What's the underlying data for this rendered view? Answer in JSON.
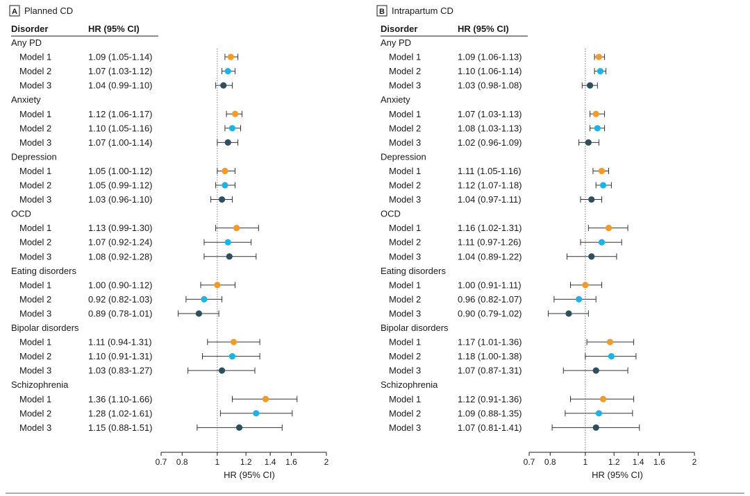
{
  "colors": {
    "model_1": "#f39a2d",
    "model_2": "#1fb3e5",
    "model_3": "#2e4f5d",
    "text": "#1a1a1a",
    "line": "#333333",
    "reference": "#777777"
  },
  "chart_data": [
    {
      "type": "forest",
      "panel_letter": "A",
      "title": "Planned CD",
      "col_disorder": "Disorder",
      "col_hr": "HR (95% CI)",
      "xlabel": "HR (95% CI)",
      "xscale": "log",
      "xlim": [
        0.7,
        2
      ],
      "xticks": [
        0.7,
        0.8,
        1,
        1.2,
        1.4,
        1.6,
        2
      ],
      "xtick_labels": [
        "0.7",
        "0.8",
        "1",
        "1.2",
        "1.4",
        "1.6",
        "2"
      ],
      "reference_line": 1,
      "groups": [
        {
          "name": "Any PD",
          "rows": [
            {
              "model": "Model 1",
              "label": "1.09 (1.05-1.14)",
              "hr": 1.09,
              "lo": 1.05,
              "hi": 1.14
            },
            {
              "model": "Model 2",
              "label": "1.07 (1.03-1.12)",
              "hr": 1.07,
              "lo": 1.03,
              "hi": 1.12
            },
            {
              "model": "Model 3",
              "label": "1.04 (0.99-1.10)",
              "hr": 1.04,
              "lo": 0.99,
              "hi": 1.1
            }
          ]
        },
        {
          "name": "Anxiety",
          "rows": [
            {
              "model": "Model 1",
              "label": "1.12 (1.06-1.17)",
              "hr": 1.12,
              "lo": 1.06,
              "hi": 1.17
            },
            {
              "model": "Model 2",
              "label": "1.10 (1.05-1.16)",
              "hr": 1.1,
              "lo": 1.05,
              "hi": 1.16
            },
            {
              "model": "Model 3",
              "label": "1.07 (1.00-1.14)",
              "hr": 1.07,
              "lo": 1.0,
              "hi": 1.14
            }
          ]
        },
        {
          "name": "Depression",
          "rows": [
            {
              "model": "Model 1",
              "label": "1.05 (1.00-1.12)",
              "hr": 1.05,
              "lo": 1.0,
              "hi": 1.12
            },
            {
              "model": "Model 2",
              "label": "1.05 (0.99-1.12)",
              "hr": 1.05,
              "lo": 0.99,
              "hi": 1.12
            },
            {
              "model": "Model 3",
              "label": "1.03 (0.96-1.10)",
              "hr": 1.03,
              "lo": 0.96,
              "hi": 1.1
            }
          ]
        },
        {
          "name": "OCD",
          "rows": [
            {
              "model": "Model 1",
              "label": "1.13 (0.99-1.30)",
              "hr": 1.13,
              "lo": 0.99,
              "hi": 1.3
            },
            {
              "model": "Model 2",
              "label": "1.07 (0.92-1.24)",
              "hr": 1.07,
              "lo": 0.92,
              "hi": 1.24
            },
            {
              "model": "Model 3",
              "label": "1.08 (0.92-1.28)",
              "hr": 1.08,
              "lo": 0.92,
              "hi": 1.28
            }
          ]
        },
        {
          "name": "Eating disorders",
          "rows": [
            {
              "model": "Model 1",
              "label": "1.00 (0.90-1.12)",
              "hr": 1.0,
              "lo": 0.9,
              "hi": 1.12
            },
            {
              "model": "Model 2",
              "label": "0.92 (0.82-1.03)",
              "hr": 0.92,
              "lo": 0.82,
              "hi": 1.03
            },
            {
              "model": "Model 3",
              "label": "0.89 (0.78-1.01)",
              "hr": 0.89,
              "lo": 0.78,
              "hi": 1.01
            }
          ]
        },
        {
          "name": "Bipolar disorders",
          "rows": [
            {
              "model": "Model 1",
              "label": "1.11 (0.94-1.31)",
              "hr": 1.11,
              "lo": 0.94,
              "hi": 1.31
            },
            {
              "model": "Model 2",
              "label": "1.10 (0.91-1.31)",
              "hr": 1.1,
              "lo": 0.91,
              "hi": 1.31
            },
            {
              "model": "Model 3",
              "label": "1.03 (0.83-1.27)",
              "hr": 1.03,
              "lo": 0.83,
              "hi": 1.27
            }
          ]
        },
        {
          "name": "Schizophrenia",
          "rows": [
            {
              "model": "Model 1",
              "label": "1.36 (1.10-1.66)",
              "hr": 1.36,
              "lo": 1.1,
              "hi": 1.66
            },
            {
              "model": "Model 2",
              "label": "1.28 (1.02-1.61)",
              "hr": 1.28,
              "lo": 1.02,
              "hi": 1.61
            },
            {
              "model": "Model 3",
              "label": "1.15 (0.88-1.51)",
              "hr": 1.15,
              "lo": 0.88,
              "hi": 1.51
            }
          ]
        }
      ]
    },
    {
      "type": "forest",
      "panel_letter": "B",
      "title": "Intrapartum CD",
      "col_disorder": "Disorder",
      "col_hr": "HR (95% CI)",
      "xlabel": "HR (95% CI)",
      "xscale": "log",
      "xlim": [
        0.7,
        2
      ],
      "xticks": [
        0.7,
        0.8,
        1,
        1.2,
        1.4,
        1.6,
        2
      ],
      "xtick_labels": [
        "0.7",
        "0.8",
        "1",
        "1.2",
        "1.4",
        "1.6",
        "2"
      ],
      "reference_line": 1,
      "groups": [
        {
          "name": "Any PD",
          "rows": [
            {
              "model": "Model 1",
              "label": "1.09 (1.06-1.13)",
              "hr": 1.09,
              "lo": 1.06,
              "hi": 1.13
            },
            {
              "model": "Model 2",
              "label": "1.10 (1.06-1.14)",
              "hr": 1.1,
              "lo": 1.06,
              "hi": 1.14
            },
            {
              "model": "Model 3",
              "label": "1.03 (0.98-1.08)",
              "hr": 1.03,
              "lo": 0.98,
              "hi": 1.08
            }
          ]
        },
        {
          "name": "Anxiety",
          "rows": [
            {
              "model": "Model 1",
              "label": "1.07 (1.03-1.13)",
              "hr": 1.07,
              "lo": 1.03,
              "hi": 1.13
            },
            {
              "model": "Model 2",
              "label": "1.08 (1.03-1.13)",
              "hr": 1.08,
              "lo": 1.03,
              "hi": 1.13
            },
            {
              "model": "Model 3",
              "label": "1.02 (0.96-1.09)",
              "hr": 1.02,
              "lo": 0.96,
              "hi": 1.09
            }
          ]
        },
        {
          "name": "Depression",
          "rows": [
            {
              "model": "Model 1",
              "label": "1.11 (1.05-1.16)",
              "hr": 1.11,
              "lo": 1.05,
              "hi": 1.16
            },
            {
              "model": "Model 2",
              "label": "1.12 (1.07-1.18)",
              "hr": 1.12,
              "lo": 1.07,
              "hi": 1.18
            },
            {
              "model": "Model 3",
              "label": "1.04 (0.97-1.11)",
              "hr": 1.04,
              "lo": 0.97,
              "hi": 1.11
            }
          ]
        },
        {
          "name": "OCD",
          "rows": [
            {
              "model": "Model 1",
              "label": "1.16 (1.02-1.31)",
              "hr": 1.16,
              "lo": 1.02,
              "hi": 1.31
            },
            {
              "model": "Model 2",
              "label": "1.11 (0.97-1.26)",
              "hr": 1.11,
              "lo": 0.97,
              "hi": 1.26
            },
            {
              "model": "Model 3",
              "label": "1.04 (0.89-1.22)",
              "hr": 1.04,
              "lo": 0.89,
              "hi": 1.22
            }
          ]
        },
        {
          "name": "Eating disorders",
          "rows": [
            {
              "model": "Model 1",
              "label": "1.00 (0.91-1.11)",
              "hr": 1.0,
              "lo": 0.91,
              "hi": 1.11
            },
            {
              "model": "Model 2",
              "label": "0.96 (0.82-1.07)",
              "hr": 0.96,
              "lo": 0.82,
              "hi": 1.07
            },
            {
              "model": "Model 3",
              "label": "0.90 (0.79-1.02)",
              "hr": 0.9,
              "lo": 0.79,
              "hi": 1.02
            }
          ]
        },
        {
          "name": "Bipolar disorders",
          "rows": [
            {
              "model": "Model 1",
              "label": "1.17 (1.01-1.36)",
              "hr": 1.17,
              "lo": 1.01,
              "hi": 1.36
            },
            {
              "model": "Model 2",
              "label": "1.18 (1.00-1.38)",
              "hr": 1.18,
              "lo": 1.0,
              "hi": 1.38
            },
            {
              "model": "Model 3",
              "label": "1.07 (0.87-1.31)",
              "hr": 1.07,
              "lo": 0.87,
              "hi": 1.31
            }
          ]
        },
        {
          "name": "Schizophrenia",
          "rows": [
            {
              "model": "Model 1",
              "label": "1.12 (0.91-1.36)",
              "hr": 1.12,
              "lo": 0.91,
              "hi": 1.36
            },
            {
              "model": "Model 2",
              "label": "1.09 (0.88-1.35)",
              "hr": 1.09,
              "lo": 0.88,
              "hi": 1.35
            },
            {
              "model": "Model 3",
              "label": "1.07 (0.81-1.41)",
              "hr": 1.07,
              "lo": 0.81,
              "hi": 1.41
            }
          ]
        }
      ]
    }
  ]
}
